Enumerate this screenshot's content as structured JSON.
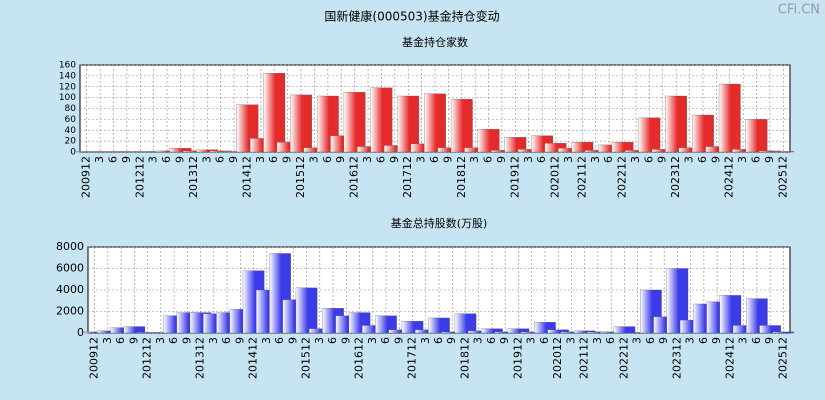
{
  "title": "国新健康(000503)基金持仓变动",
  "watermark": "CFi.CN",
  "chart_data": [
    {
      "type": "bar",
      "title": "基金持仓家数",
      "color": "#e52a2a",
      "categories": [
        "200912",
        "3",
        "6",
        "9",
        "201212",
        "3",
        "6",
        "9",
        "201312",
        "3",
        "6",
        "9",
        "201412",
        "3",
        "6",
        "9",
        "201512",
        "3",
        "6",
        "9",
        "201612",
        "3",
        "6",
        "9",
        "201712",
        "3",
        "6",
        "9",
        "201812",
        "3",
        "6",
        "9",
        "201912",
        "3",
        "6",
        "202012",
        "3",
        "202112",
        "3",
        "6",
        "202212",
        "3",
        "6",
        "9",
        "202312",
        "3",
        "6",
        "9",
        "202412",
        "3",
        "6",
        "9",
        "202512"
      ],
      "values": [
        1,
        1,
        1,
        1,
        1,
        1,
        2,
        7,
        2,
        4,
        2,
        1,
        87,
        25,
        145,
        18,
        105,
        8,
        103,
        30,
        110,
        10,
        118,
        12,
        103,
        15,
        107,
        8,
        97,
        8,
        42,
        3,
        27,
        5,
        30,
        16,
        7,
        18,
        3,
        13,
        18,
        3,
        63,
        5,
        103,
        8,
        68,
        10,
        125,
        5,
        60,
        2,
        1
      ],
      "ylim": [
        0,
        160
      ],
      "yticks": [
        0,
        20,
        40,
        60,
        80,
        100,
        120,
        140,
        160
      ],
      "grid": true
    },
    {
      "type": "bar",
      "title": "基金总持股数(万股)",
      "color": "#3b3bea",
      "categories": [
        "200912",
        "3",
        "6",
        "9",
        "201212",
        "3",
        "6",
        "9",
        "201312",
        "3",
        "6",
        "9",
        "201412",
        "3",
        "6",
        "9",
        "201512",
        "3",
        "6",
        "9",
        "201612",
        "3",
        "6",
        "9",
        "201712",
        "3",
        "6",
        "9",
        "201812",
        "3",
        "6",
        "9",
        "201912",
        "3",
        "6",
        "202012",
        "3",
        "202112",
        "3",
        "6",
        "202212",
        "3",
        "6",
        "9",
        "202312",
        "3",
        "6",
        "9",
        "202412",
        "3",
        "6",
        "9",
        "202512"
      ],
      "values": [
        100,
        200,
        500,
        600,
        50,
        0,
        1600,
        1900,
        1900,
        1800,
        1900,
        2200,
        5800,
        4000,
        7400,
        3100,
        4200,
        400,
        2300,
        1600,
        1900,
        700,
        1600,
        300,
        1100,
        300,
        1400,
        100,
        1800,
        200,
        400,
        100,
        400,
        100,
        1000,
        300,
        100,
        200,
        100,
        100,
        600,
        0,
        4000,
        1500,
        6000,
        1200,
        2700,
        2900,
        3500,
        700,
        3200,
        700,
        100
      ],
      "ylim": [
        0,
        8000
      ],
      "yticks": [
        0,
        2000,
        4000,
        6000,
        8000
      ],
      "grid": true
    }
  ]
}
